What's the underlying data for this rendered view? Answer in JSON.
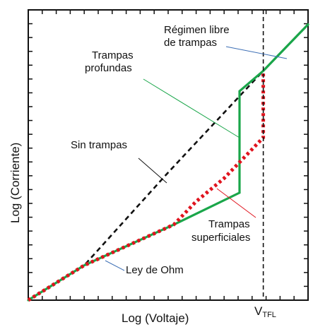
{
  "chart_data": {
    "type": "line",
    "xlabel": "Log (Voltaje)",
    "ylabel": "Log (Corriente)",
    "xlim": [
      0,
      1
    ],
    "ylim": [
      0,
      1
    ],
    "series": [
      {
        "name": "Sin trampas",
        "style": "dashed",
        "color": "#111111",
        "points": [
          [
            0.0,
            0.0
          ],
          [
            0.2,
            0.12
          ],
          [
            0.5,
            0.44
          ],
          [
            0.84,
            0.79
          ]
        ]
      },
      {
        "name": "Trampas profundas",
        "style": "solid",
        "color": "#1aa64a",
        "points": [
          [
            0.0,
            0.0
          ],
          [
            0.2,
            0.12
          ],
          [
            0.52,
            0.26
          ],
          [
            0.755,
            0.37
          ],
          [
            0.755,
            0.72
          ],
          [
            0.84,
            0.79
          ],
          [
            1.0,
            0.95
          ]
        ]
      },
      {
        "name": "Trampas superficiales",
        "style": "dotted",
        "color": "#e0141e",
        "points": [
          [
            0.0,
            0.0
          ],
          [
            0.2,
            0.12
          ],
          [
            0.52,
            0.26
          ],
          [
            0.6,
            0.34
          ],
          [
            0.7,
            0.42
          ],
          [
            0.8,
            0.52
          ],
          [
            0.84,
            0.56
          ],
          [
            0.84,
            0.79
          ]
        ]
      },
      {
        "name": "Régimen libre de trampas",
        "style": "solid",
        "color": "#6b8e6b",
        "points": [
          [
            0.84,
            0.79
          ],
          [
            1.0,
            0.95
          ]
        ]
      }
    ],
    "vertical_marker": {
      "x": 0.84,
      "label": "V",
      "label_sub": "TFL",
      "style": "dashed"
    },
    "annotations": {
      "regimen_line1": "Régimen libre",
      "regimen_line2": "de trampas",
      "profundas_line1": "Trampas",
      "profundas_line2": "profundas",
      "sin_trampas": "Sin trampas",
      "superficiales_line1": "Trampas",
      "superficiales_line2": "superficiales",
      "ohm": "Ley de Ohm"
    },
    "colors": {
      "axis": "#111111",
      "pointer_regimen": "#3d6fb5",
      "pointer_profundas": "#1aa64a",
      "pointer_sin": "#111111",
      "pointer_superficiales": "#e0141e",
      "pointer_ohm": "#3d6fb5"
    }
  }
}
